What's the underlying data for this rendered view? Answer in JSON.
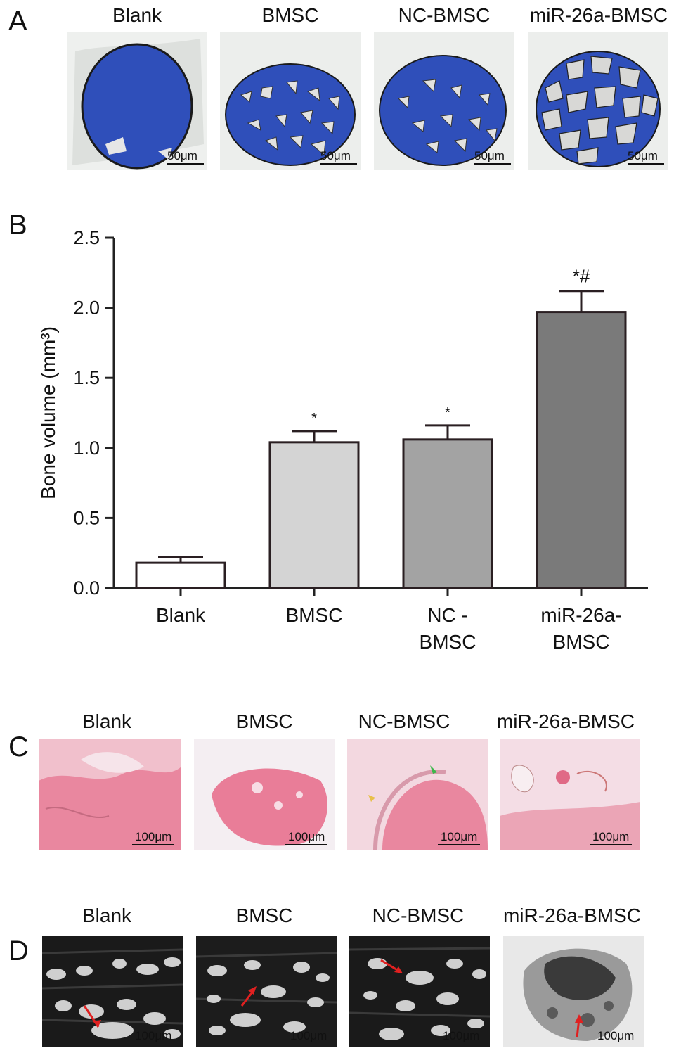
{
  "panels": {
    "A": {
      "letter": "A",
      "labels": [
        "Blank",
        "BMSC",
        "NC-BMSC",
        "miR-26a-BMSC"
      ],
      "scale_label": "50μm"
    },
    "B": {
      "letter": "B"
    },
    "C": {
      "letter": "C",
      "labels": [
        "Blank",
        "BMSC",
        "NC-BMSC",
        "miR-26a-BMSC"
      ],
      "scale_label": "100μm"
    },
    "D": {
      "letter": "D",
      "labels": [
        "Blank",
        "BMSC",
        "NC-BMSC",
        "miR-26a-BMSC"
      ],
      "scale_label": "100μm"
    }
  },
  "chart_data": {
    "type": "bar",
    "categories": [
      "Blank",
      "BMSC",
      "NC-BMSC",
      "miR-26a-BMSC"
    ],
    "category_lines": [
      [
        "Blank"
      ],
      [
        "BMSC"
      ],
      [
        "NC -",
        "BMSC"
      ],
      [
        "miR-26a-",
        "BMSC"
      ]
    ],
    "values": [
      0.18,
      1.04,
      1.06,
      1.97
    ],
    "errors": [
      0.04,
      0.08,
      0.1,
      0.15
    ],
    "annotations": [
      "",
      "*",
      "*",
      "*#"
    ],
    "colors": [
      "#ffffff",
      "#d4d4d4",
      "#a3a3a3",
      "#7a7a7a"
    ],
    "ylabel": "Bone volume (mm³)",
    "ylim": [
      0,
      2.5
    ],
    "yticks": [
      "0.0",
      "0.5",
      "1.0",
      "1.5",
      "2.0",
      "2.5"
    ],
    "grid": false
  }
}
